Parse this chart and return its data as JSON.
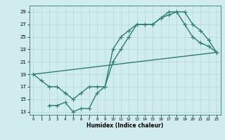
{
  "line1_x": [
    0,
    1,
    2,
    3,
    4,
    5,
    6,
    7,
    8,
    9,
    10,
    11,
    12,
    13,
    14,
    15,
    16,
    17,
    18,
    19,
    20,
    21,
    22,
    23
  ],
  "line1_y": [
    19,
    18,
    17,
    17,
    16,
    15,
    16,
    17,
    17,
    17,
    23,
    25,
    26,
    27,
    27,
    27,
    28,
    29,
    29,
    27,
    25,
    24,
    23.5,
    22.5
  ],
  "line2_x": [
    2,
    3,
    4,
    5,
    6,
    7,
    8,
    9,
    10,
    11,
    12,
    13,
    14,
    15,
    16,
    17,
    18,
    19,
    20,
    21,
    22,
    23
  ],
  "line2_y": [
    14,
    14,
    14.5,
    13,
    13.5,
    13.5,
    16,
    17,
    21,
    23,
    25,
    27,
    27,
    27,
    28,
    28.5,
    29,
    29,
    27,
    26,
    24.5,
    22.5
  ],
  "line3_x": [
    0,
    23
  ],
  "line3_y": [
    19,
    22.5
  ],
  "line_color": "#2e7d6e",
  "bg_color": "#d0ecee",
  "grid_color": "#b0d8d8",
  "xlabel": "Humidex (Indice chaleur)",
  "xlim": [
    -0.5,
    23.5
  ],
  "ylim": [
    12.5,
    30
  ],
  "xticks": [
    0,
    1,
    2,
    3,
    4,
    5,
    6,
    7,
    8,
    9,
    10,
    11,
    12,
    13,
    14,
    15,
    16,
    17,
    18,
    19,
    20,
    21,
    22,
    23
  ],
  "yticks": [
    13,
    15,
    17,
    19,
    21,
    23,
    25,
    27,
    29
  ],
  "markersize": 2.5,
  "linewidth": 1.0
}
